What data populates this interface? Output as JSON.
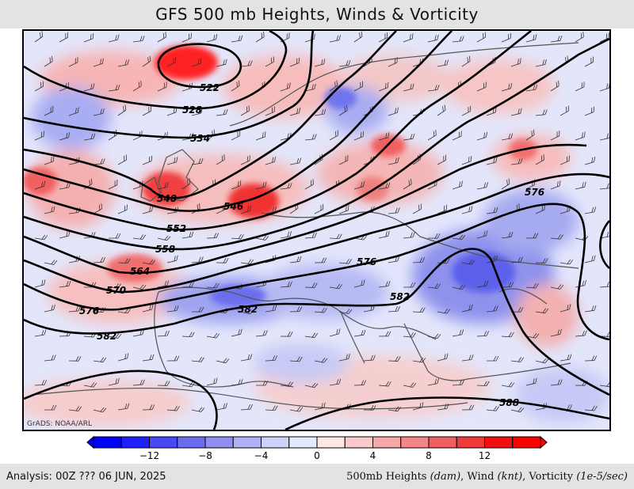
{
  "title": "GFS 500 mb Heights, Winds & Vorticity",
  "credit": "GrADS: NOAA/ARL",
  "footer": {
    "analysis": "Analysis: 00Z ??? 06 JUN, 2025",
    "fields_prefix": "500mb Heights ",
    "heights_unit": "(dam)",
    "wind_label": ", Wind ",
    "wind_unit": "(knt)",
    "vort_label": ", Vorticity ",
    "vort_unit": "(1e-5/sec)"
  },
  "colorbar": {
    "tick_labels": [
      "−12",
      "−8",
      "−4",
      "0",
      "4",
      "8",
      "12"
    ],
    "colors": [
      "#0000ff",
      "#2020ff",
      "#4848f4",
      "#6b6bf0",
      "#8f8ff0",
      "#b0b0f4",
      "#cfd2f8",
      "#e6e8fb",
      "#fde8e8",
      "#fbcaca",
      "#f7a8a8",
      "#f38686",
      "#ef6060",
      "#ee3a3a",
      "#f01010",
      "#ff0000"
    ]
  },
  "contour_labels": [
    "522",
    "528",
    "534",
    "540",
    "546",
    "552",
    "558",
    "564",
    "570",
    "576",
    "576",
    "576",
    "582",
    "582",
    "582",
    "588"
  ]
}
